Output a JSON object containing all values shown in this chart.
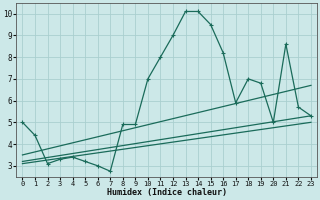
{
  "xlabel": "Humidex (Indice chaleur)",
  "bg_color": "#cce8e8",
  "line_color": "#1a6b5a",
  "grid_color": "#aacfcf",
  "xlim": [
    -0.5,
    23.5
  ],
  "ylim": [
    2.5,
    10.5
  ],
  "xticks": [
    0,
    1,
    2,
    3,
    4,
    5,
    6,
    7,
    8,
    9,
    10,
    11,
    12,
    13,
    14,
    15,
    16,
    17,
    18,
    19,
    20,
    21,
    22,
    23
  ],
  "yticks": [
    3,
    4,
    5,
    6,
    7,
    8,
    9,
    10
  ],
  "lines": [
    {
      "x": [
        0,
        1,
        2,
        3,
        4,
        5,
        6,
        7,
        8,
        9,
        10,
        11,
        12,
        13,
        14,
        15,
        16,
        17,
        18,
        19,
        20,
        21,
        22,
        23
      ],
      "y": [
        5.0,
        4.4,
        3.1,
        3.3,
        3.4,
        3.2,
        3.0,
        2.75,
        4.9,
        4.9,
        7.0,
        8.0,
        9.0,
        10.1,
        10.1,
        9.5,
        8.2,
        5.9,
        7.0,
        6.8,
        5.0,
        8.6,
        5.7,
        5.3
      ]
    },
    {
      "x": [
        0,
        23
      ],
      "y": [
        3.5,
        6.7
      ]
    },
    {
      "x": [
        0,
        23
      ],
      "y": [
        3.2,
        5.3
      ]
    },
    {
      "x": [
        0,
        23
      ],
      "y": [
        3.1,
        5.0
      ]
    }
  ]
}
